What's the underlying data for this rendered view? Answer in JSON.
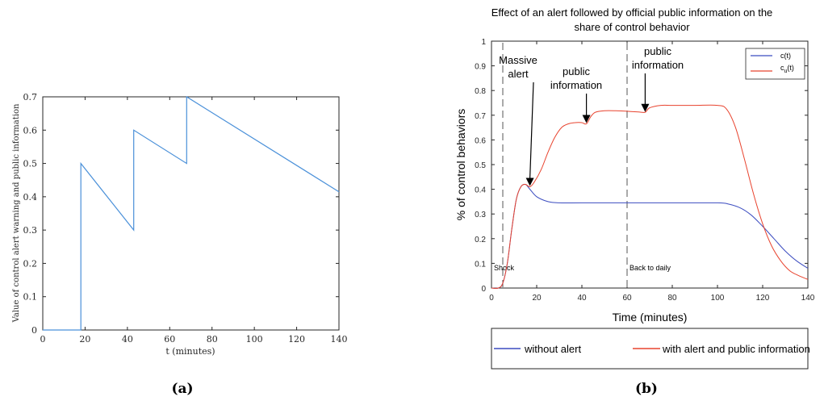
{
  "chart_data": [
    {
      "type": "line",
      "panel_label": "(a)",
      "title": "",
      "xlabel": "t (minutes)",
      "ylabel": "Value of control alert warning and public information",
      "xlim": [
        0,
        140
      ],
      "ylim": [
        0,
        0.7
      ],
      "xticks": [
        0,
        20,
        40,
        60,
        80,
        100,
        120,
        140
      ],
      "yticks": [
        0,
        0.1,
        0.2,
        0.3,
        0.4,
        0.5,
        0.6,
        0.7
      ],
      "grid": false,
      "series": [
        {
          "color": "#4a90d9",
          "x": [
            0,
            18,
            18,
            43,
            43,
            68,
            68,
            140
          ],
          "y": [
            0,
            0,
            0.5,
            0.3,
            0.6,
            0.5,
            0.7,
            0.415
          ]
        }
      ]
    },
    {
      "type": "line",
      "panel_label": "(b)",
      "title": "Effect of an alert followed by official public information on the share of control  behavior",
      "title_lines": [
        "Effect of an alert followed by official public information on the",
        "share of control  behavior"
      ],
      "xlabel": "Time (minutes)",
      "ylabel": "% of control  behaviors",
      "xlim": [
        0,
        140
      ],
      "ylim": [
        0,
        1
      ],
      "xticks": [
        0,
        20,
        40,
        60,
        80,
        100,
        120,
        140
      ],
      "yticks": [
        0,
        0.1,
        0.2,
        0.3,
        0.4,
        0.5,
        0.6,
        0.7,
        0.8,
        0.9,
        1
      ],
      "grid": false,
      "legend_position": "top-right",
      "legend": [
        {
          "label": "c(t)",
          "color": "#3b4cc0"
        },
        {
          "label": "c",
          "subscript": "u",
          "suffix": "(t)",
          "color": "#e8432e"
        }
      ],
      "bottom_legend": [
        {
          "label": "without alert",
          "color": "#3b4cc0"
        },
        {
          "label": "with alert and public information",
          "color": "#e8432e"
        }
      ],
      "vlines": [
        {
          "x": 5,
          "label": "Shock"
        },
        {
          "x": 60,
          "label": "Back to daily"
        }
      ],
      "annotations": [
        {
          "lines": [
            "Massive",
            "alert"
          ],
          "arrow_x": 17,
          "arrow_y": 0.41
        },
        {
          "lines": [
            "public",
            "information"
          ],
          "arrow_x": 42,
          "arrow_y": 0.665
        },
        {
          "lines": [
            "public",
            "information"
          ],
          "arrow_x": 68,
          "arrow_y": 0.71
        }
      ],
      "series": [
        {
          "name": "c(t)",
          "color": "#3b4cc0",
          "x": [
            0,
            3,
            5,
            7,
            9,
            11,
            13,
            15,
            17,
            20,
            25,
            30,
            40,
            60,
            80,
            100,
            105,
            110,
            115,
            120,
            125,
            130,
            135,
            140
          ],
          "y": [
            0,
            0,
            0.02,
            0.1,
            0.24,
            0.36,
            0.41,
            0.42,
            0.4,
            0.37,
            0.35,
            0.345,
            0.345,
            0.345,
            0.345,
            0.345,
            0.34,
            0.325,
            0.295,
            0.25,
            0.2,
            0.15,
            0.11,
            0.08
          ]
        },
        {
          "name": "cu(t)",
          "color": "#e8432e",
          "x": [
            0,
            3,
            5,
            7,
            9,
            11,
            13,
            15,
            17,
            19,
            22,
            25,
            28,
            31,
            34,
            37,
            40,
            42,
            44,
            46,
            50,
            55,
            60,
            65,
            68,
            70,
            75,
            80,
            90,
            100,
            104,
            108,
            112,
            116,
            120,
            124,
            128,
            132,
            136,
            140
          ],
          "y": [
            0,
            0,
            0.02,
            0.1,
            0.24,
            0.36,
            0.41,
            0.42,
            0.41,
            0.43,
            0.48,
            0.55,
            0.61,
            0.65,
            0.665,
            0.67,
            0.67,
            0.665,
            0.695,
            0.712,
            0.718,
            0.718,
            0.716,
            0.713,
            0.712,
            0.73,
            0.74,
            0.74,
            0.74,
            0.74,
            0.725,
            0.65,
            0.52,
            0.38,
            0.26,
            0.17,
            0.11,
            0.07,
            0.05,
            0.035
          ]
        }
      ]
    }
  ]
}
